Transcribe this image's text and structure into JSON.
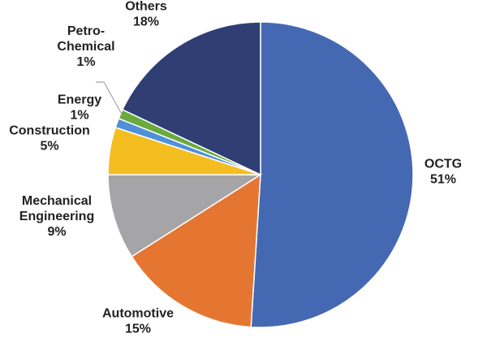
{
  "chart_data": {
    "type": "pie",
    "title": "",
    "start_angle_deg": 0,
    "direction": "clockwise",
    "slices": [
      {
        "name": "OCTG",
        "value": 51,
        "label": "51%",
        "color": "#4568b3"
      },
      {
        "name": "Automotive",
        "value": 15,
        "label": "15%",
        "color": "#e57632"
      },
      {
        "name": "Mechanical\nEngineering",
        "value": 9,
        "label": "9%",
        "color": "#a5a5a7"
      },
      {
        "name": "Construction",
        "value": 5,
        "label": "5%",
        "color": "#f4bd20"
      },
      {
        "name": "Energy",
        "value": 1,
        "label": "1%",
        "color": "#4f91d8"
      },
      {
        "name": "Petro-\nChemical",
        "value": 1,
        "label": "1%",
        "color": "#6aaa3e"
      },
      {
        "name": "Others",
        "value": 18,
        "label": "18%",
        "color": "#2f3f74"
      }
    ]
  }
}
